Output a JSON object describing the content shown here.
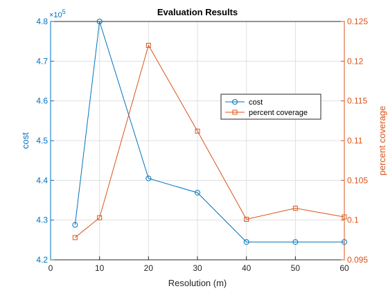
{
  "chart_data": {
    "type": "line",
    "title": "Evaluation Results",
    "xlabel": "Resolution (m)",
    "ylabel_left": "cost",
    "ylabel_right": "percent coverage",
    "left_exponent_prefix": "×10",
    "left_exponent_power": "5",
    "xlim": [
      0,
      60
    ],
    "ylim_left": [
      4.2,
      4.8
    ],
    "ylim_right": [
      0.095,
      0.125
    ],
    "x_ticks": [
      0,
      10,
      20,
      30,
      40,
      50,
      60
    ],
    "y_ticks_left": [
      4.2,
      4.3,
      4.4,
      4.5,
      4.6,
      4.7,
      4.8
    ],
    "y_ticks_right": [
      0.095,
      0.1,
      0.105,
      0.11,
      0.115,
      0.12,
      0.125
    ],
    "grid": true,
    "legend_position": "center-right",
    "series": [
      {
        "name": "cost",
        "axis": "left",
        "marker": "circle",
        "color": "#0072BD",
        "x": [
          5,
          10,
          20,
          30,
          40,
          50,
          60
        ],
        "y": [
          4.288,
          4.8,
          4.405,
          4.369,
          4.245,
          4.245,
          4.245
        ]
      },
      {
        "name": "percent coverage",
        "axis": "right",
        "marker": "square",
        "color": "#D95319",
        "x": [
          5,
          10,
          20,
          30,
          40,
          50,
          60
        ],
        "y": [
          0.0978,
          0.1003,
          0.122,
          0.1112,
          0.1001,
          0.1015,
          0.1004
        ]
      }
    ]
  }
}
